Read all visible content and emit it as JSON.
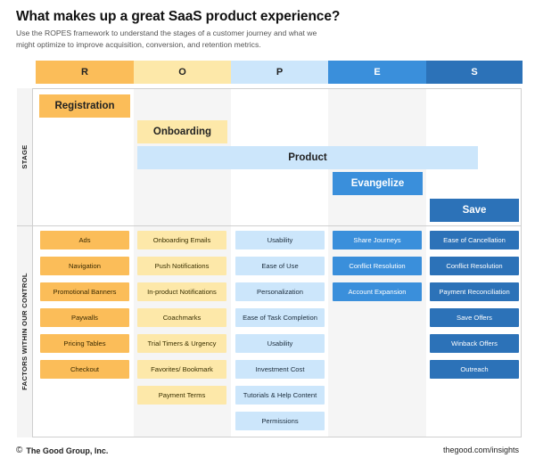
{
  "header": {
    "title": "What makes up a great SaaS product experience?",
    "subtitle": "Use the ROPES framework to understand the stages of a customer journey and what we might optimize to improve acquisition, conversion, and retention metrics."
  },
  "columns": [
    "R",
    "O",
    "P",
    "E",
    "S"
  ],
  "colors": {
    "R": "#fbbd59",
    "O": "#fde8a9",
    "P": "#cce6fb",
    "E": "#3a8fdb",
    "S": "#2c72b8"
  },
  "row_labels": {
    "stage": "STAGE",
    "factors": "FACTORS WITHIN OUR CONTROL"
  },
  "stages": {
    "registration": "Registration",
    "onboarding": "Onboarding",
    "product": "Product",
    "evangelize": "Evangelize",
    "save": "Save"
  },
  "factors": {
    "r": [
      "Ads",
      "Navigation",
      "Promotional Banners",
      "Paywalls",
      "Pricing Tables",
      "Checkout"
    ],
    "o": [
      "Onboarding Emails",
      "Push Notifications",
      "In-product Notifications",
      "Coachmarks",
      "Trial Timers & Urgency",
      "Favorites/ Bookmark",
      "Payment Terms"
    ],
    "p": [
      "Usability",
      "Ease of Use",
      "Personalization",
      "Ease of Task Completion",
      "Usability",
      "Investment Cost",
      "Tutorials & Help Content",
      "Permissions"
    ],
    "e": [
      "Share Journeys",
      "Conflict Resolution",
      "Account Expansion"
    ],
    "s": [
      "Ease of Cancellation",
      "Conflict Resolution",
      "Payment Reconciliation",
      "Save Offers",
      "Winback Offers",
      "Outreach"
    ]
  },
  "footer": {
    "copyright_icon": "copyright-icon",
    "company": "The Good Group, Inc.",
    "url": "thegood.com/insights"
  }
}
